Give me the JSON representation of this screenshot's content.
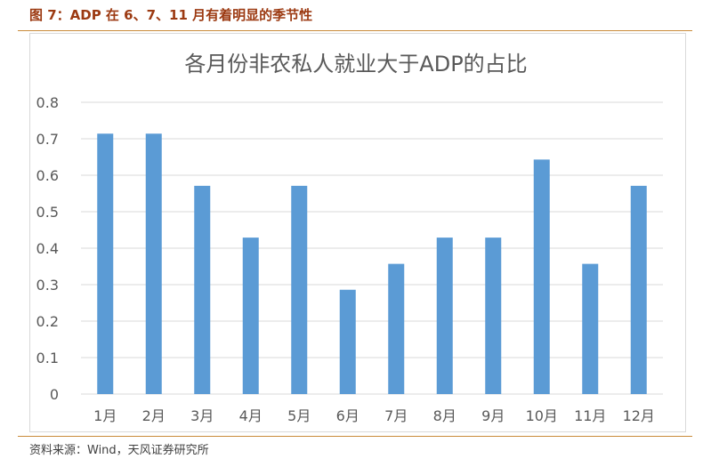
{
  "caption": "图 7：ADP 在 6、7、11 月有着明显的季节性",
  "source": "资料来源：Wind，天风证券研究所",
  "colors": {
    "bar": "#5b9bd5",
    "grid": "#d9d9d9",
    "caption": "#9c3a12",
    "rule": "#c98a3a"
  },
  "chart_data": {
    "type": "bar",
    "title": "各月份非农私人就业大于ADP的占比",
    "categories": [
      "1月",
      "2月",
      "3月",
      "4月",
      "5月",
      "6月",
      "7月",
      "8月",
      "9月",
      "10月",
      "11月",
      "12月"
    ],
    "values": [
      0.714,
      0.714,
      0.571,
      0.429,
      0.571,
      0.286,
      0.357,
      0.429,
      0.429,
      0.643,
      0.357,
      0.571
    ],
    "yticks": [
      "0",
      "0.1",
      "0.2",
      "0.3",
      "0.4",
      "0.5",
      "0.6",
      "0.7",
      "0.8"
    ],
    "ylim": [
      0,
      0.8
    ],
    "grid": true,
    "legend": "none"
  }
}
